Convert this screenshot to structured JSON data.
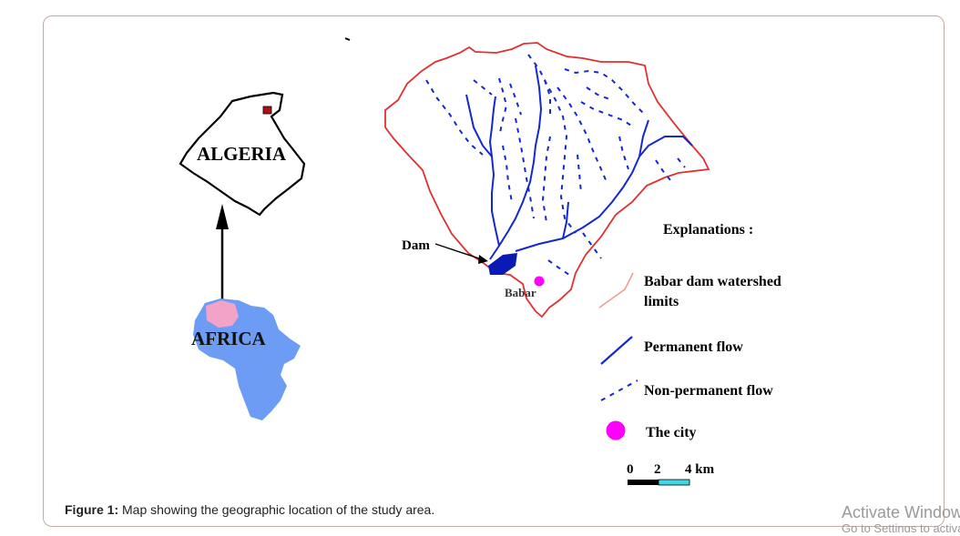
{
  "map": {
    "labels": {
      "algeria": "ALGERIA",
      "africa": "AFRICA",
      "dam": "Dam",
      "city": "Babar"
    }
  },
  "legend": {
    "title": "Explanations :",
    "items": [
      {
        "label_line1": "Babar dam watershed",
        "label_line2": "limits"
      },
      {
        "label": "Permanent flow"
      },
      {
        "label": "Non-permanent flow"
      },
      {
        "label": "The city"
      }
    ],
    "scale_ticks": [
      "0",
      "2",
      "4 km"
    ]
  },
  "caption": {
    "prefix": "Figure 1:",
    "text": " Map showing the geographic location of the study area."
  },
  "watermark": {
    "line1": "Activate Windows",
    "line2": "Go to Settings to activate Windows."
  },
  "colors": {
    "watershed_border": "#e03030",
    "flow": "#1428d2",
    "dam": "#0a1ab4",
    "city": "#ff00ff",
    "africa": "#6d9cf5",
    "algeria_on_africa": "#f4a3c8",
    "scale_cyan": "#40d8e8"
  }
}
